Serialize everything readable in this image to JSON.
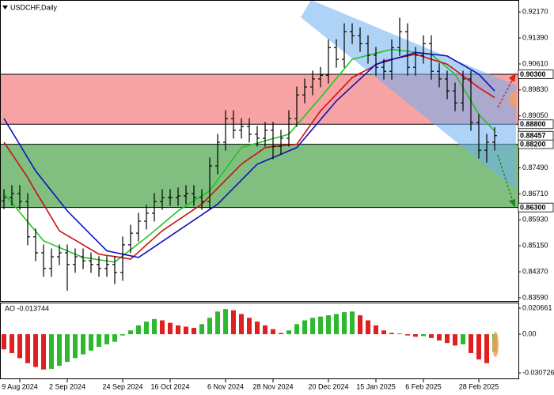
{
  "chart_data": [
    {
      "type": "candlestick",
      "title": "USDCHF,Daily",
      "categories": [
        null,
        null,
        "9 Aug 2024",
        null,
        null,
        null,
        null,
        null,
        "2 Sep 2024",
        null,
        null,
        null,
        null,
        null,
        null,
        "24 Sep 2024",
        null,
        null,
        null,
        null,
        null,
        "16 Oct 2024",
        null,
        null,
        null,
        null,
        null,
        null,
        "6 Nov 2024",
        null,
        null,
        null,
        null,
        null,
        "28 Nov 2024",
        null,
        null,
        null,
        null,
        null,
        null,
        "20 Dec 2024",
        null,
        null,
        null,
        null,
        null,
        "15 Jan 2025",
        null,
        null,
        null,
        null,
        null,
        "6 Feb 2025",
        null,
        null,
        null,
        null,
        null,
        null,
        "28 Feb 2025",
        null,
        null
      ],
      "open": [
        0.865,
        0.866,
        0.8672,
        0.8648,
        0.8542,
        0.8494,
        0.8447,
        0.8482,
        0.8494,
        0.8459,
        0.8482,
        0.847,
        0.8459,
        0.8447,
        0.8459,
        0.8435,
        0.8518,
        0.8553,
        0.8589,
        0.8613,
        0.8648,
        0.866,
        0.866,
        0.8665,
        0.8672,
        0.866,
        0.8648,
        0.8755,
        0.8826,
        0.8897,
        0.8862,
        0.8873,
        0.885,
        0.8838,
        0.8862,
        0.8814,
        0.8838,
        0.8897,
        0.8968,
        0.8992,
        0.9016,
        0.9027,
        0.911,
        0.9075,
        0.9158,
        0.9146,
        0.9122,
        0.9087,
        0.9051,
        0.9039,
        0.911,
        0.9158,
        0.9051,
        0.9087,
        0.9122,
        0.9039,
        0.9016,
        0.898,
        0.8944,
        0.9016,
        0.8885,
        0.8802,
        0.8826
      ],
      "high": [
        0.8685,
        0.8697,
        0.8697,
        0.8673,
        0.8567,
        0.8519,
        0.8507,
        0.8519,
        0.8519,
        0.8507,
        0.8507,
        0.8495,
        0.8484,
        0.8484,
        0.8484,
        0.8543,
        0.8578,
        0.8614,
        0.8638,
        0.8673,
        0.8685,
        0.8685,
        0.869,
        0.8697,
        0.8697,
        0.8685,
        0.878,
        0.8851,
        0.8922,
        0.8922,
        0.8898,
        0.8898,
        0.8875,
        0.8887,
        0.8887,
        0.8863,
        0.8922,
        0.8993,
        0.9017,
        0.9041,
        0.9052,
        0.9135,
        0.9135,
        0.9183,
        0.9183,
        0.9171,
        0.9147,
        0.9112,
        0.9076,
        0.9135,
        0.92,
        0.9183,
        0.9112,
        0.9147,
        0.9147,
        0.9064,
        0.9041,
        0.9005,
        0.9041,
        0.9041,
        0.891,
        0.8851,
        0.8871
      ],
      "low": [
        0.8625,
        0.8635,
        0.8623,
        0.8517,
        0.8469,
        0.8422,
        0.8422,
        0.8457,
        0.838,
        0.8434,
        0.8445,
        0.8434,
        0.8422,
        0.8422,
        0.84,
        0.841,
        0.8493,
        0.8528,
        0.8564,
        0.8588,
        0.8623,
        0.8635,
        0.8635,
        0.864,
        0.8635,
        0.8623,
        0.8623,
        0.873,
        0.8801,
        0.8837,
        0.8837,
        0.8825,
        0.8813,
        0.8813,
        0.8775,
        0.8789,
        0.8813,
        0.8872,
        0.8943,
        0.8967,
        0.8991,
        0.9002,
        0.905,
        0.905,
        0.9121,
        0.9097,
        0.9062,
        0.9026,
        0.9014,
        0.9014,
        0.9085,
        0.9026,
        0.9026,
        0.9062,
        0.9014,
        0.8991,
        0.8955,
        0.8919,
        0.8919,
        0.886,
        0.8777,
        0.8765,
        0.8801
      ],
      "close": [
        0.866,
        0.8672,
        0.8648,
        0.8542,
        0.8494,
        0.8447,
        0.8482,
        0.8494,
        0.8459,
        0.8482,
        0.847,
        0.8459,
        0.8447,
        0.8459,
        0.8435,
        0.8518,
        0.8553,
        0.8589,
        0.8613,
        0.8648,
        0.866,
        0.866,
        0.8665,
        0.8672,
        0.866,
        0.8648,
        0.8755,
        0.8826,
        0.8897,
        0.8862,
        0.8873,
        0.885,
        0.8838,
        0.8862,
        0.8814,
        0.8838,
        0.8897,
        0.8968,
        0.8992,
        0.9016,
        0.9027,
        0.911,
        0.9075,
        0.9158,
        0.9146,
        0.9122,
        0.9087,
        0.9051,
        0.9039,
        0.911,
        0.9158,
        0.9051,
        0.9087,
        0.9122,
        0.9039,
        0.9016,
        0.898,
        0.8944,
        0.9016,
        0.8885,
        0.8802,
        0.8826,
        0.88457
      ],
      "bar_color": "#000000",
      "series": [
        {
          "color": "#22c422",
          "values": [
            0.8672,
            0.8644,
            0.8616,
            0.8587,
            0.8559,
            0.853,
            0.852,
            0.851,
            0.85,
            0.849,
            0.848,
            0.8477,
            0.8473,
            0.847,
            0.8466,
            0.8485,
            0.8503,
            0.8522,
            0.854,
            0.856,
            0.858,
            0.86,
            0.862,
            0.8635,
            0.865,
            0.8665,
            0.868,
            0.8713,
            0.8745,
            0.8778,
            0.881,
            0.8817,
            0.8823,
            0.883,
            0.8837,
            0.8843,
            0.885,
            0.8878,
            0.8905,
            0.8933,
            0.896,
            0.8989,
            0.9018,
            0.9046,
            0.9075,
            0.9081,
            0.9087,
            0.9093,
            0.9099,
            0.9105,
            0.9102,
            0.9099,
            0.9096,
            0.9093,
            0.909,
            0.907,
            0.905,
            0.903,
            0.899,
            0.895,
            0.891,
            0.8885,
            0.886
          ]
        },
        {
          "color": "#cc1111",
          "values": [
            0.8826,
            0.8791,
            0.8755,
            0.872,
            0.8678,
            0.864,
            0.86,
            0.856,
            0.8546,
            0.8532,
            0.8518,
            0.8504,
            0.849,
            0.8486,
            0.8483,
            0.8479,
            0.8475,
            0.8496,
            0.8518,
            0.8539,
            0.856,
            0.8576,
            0.8592,
            0.8608,
            0.8624,
            0.864,
            0.8664,
            0.8688,
            0.8712,
            0.8736,
            0.876,
            0.8777,
            0.8793,
            0.881,
            0.8813,
            0.8815,
            0.8818,
            0.882,
            0.8853,
            0.8887,
            0.892,
            0.8945,
            0.897,
            0.8995,
            0.902,
            0.9033,
            0.9045,
            0.9058,
            0.907,
            0.9075,
            0.908,
            0.9085,
            0.909,
            0.9083,
            0.9075,
            0.9068,
            0.906,
            0.9043,
            0.9025,
            0.9008,
            0.899,
            0.8975,
            0.896
          ]
        },
        {
          "color": "#1111bb",
          "values": [
            0.8897,
            0.8858,
            0.8819,
            0.8779,
            0.874,
            0.871,
            0.868,
            0.865,
            0.862,
            0.8596,
            0.8572,
            0.8548,
            0.8524,
            0.85,
            0.8495,
            0.849,
            0.8485,
            0.848,
            0.8496,
            0.8512,
            0.8528,
            0.8544,
            0.856,
            0.8576,
            0.8592,
            0.8608,
            0.8624,
            0.864,
            0.8664,
            0.8688,
            0.8712,
            0.8736,
            0.876,
            0.877,
            0.878,
            0.879,
            0.88,
            0.881,
            0.8838,
            0.8866,
            0.8894,
            0.8922,
            0.895,
            0.8972,
            0.8994,
            0.9016,
            0.9038,
            0.906,
            0.9067,
            0.9074,
            0.9081,
            0.9088,
            0.9095,
            0.9093,
            0.909,
            0.9088,
            0.9085,
            0.9071,
            0.9058,
            0.9044,
            0.903,
            0.9005,
            0.898
          ]
        }
      ],
      "zones": [
        {
          "from": {
            "value": 0.903,
            "label": "0.90300"
          },
          "to": {
            "value": 0.888,
            "label": "0.88800"
          },
          "color": "#f7a3a3"
        },
        {
          "from": {
            "value": 0.882,
            "label": "0.88200"
          },
          "to": {
            "value": 0.863,
            "label": "0.86300"
          },
          "color": "#80bf80"
        }
      ],
      "ylim": [
        0.8347,
        0.9253
      ],
      "yticks": [
        {
          "value": 0.9217,
          "label": "0.92170"
        },
        {
          "value": 0.9139,
          "label": "0.91390"
        },
        {
          "value": 0.9061,
          "label": "0.90610"
        },
        {
          "value": 0.8983,
          "label": "0.89830"
        },
        {
          "value": 0.8905,
          "label": "0.89050"
        },
        {
          "value": 0.8749,
          "label": "0.87490"
        },
        {
          "value": 0.8671,
          "label": "0.86710"
        },
        {
          "value": 0.8593,
          "label": "0.85930"
        },
        {
          "value": 0.8515,
          "label": "0.85150"
        },
        {
          "value": 0.8437,
          "label": "0.84370"
        },
        {
          "value": 0.8359,
          "label": "0.83590"
        }
      ]
    },
    {
      "type": "bar",
      "title": "AO -0.013744",
      "values": [
        -0.012,
        -0.015,
        -0.019,
        -0.023,
        -0.026,
        -0.028,
        -0.0275,
        -0.025,
        -0.022,
        -0.019,
        -0.016,
        -0.013,
        -0.01,
        -0.008,
        -0.006,
        -0.001,
        0.003,
        0.007,
        0.01,
        0.012,
        0.011,
        0.009,
        0.007,
        0.006,
        0.005,
        0.008,
        0.013,
        0.018,
        0.02,
        0.019,
        0.016,
        0.013,
        0.01,
        0.007,
        0.004,
        0.001,
        0.003,
        0.008,
        0.011,
        0.013,
        0.014,
        0.015,
        0.016,
        0.0175,
        0.018,
        0.015,
        0.011,
        0.007,
        0.003,
        0.001,
        0.0005,
        -0.001,
        -0.002,
        -0.0015,
        -0.003,
        -0.005,
        -0.007,
        -0.009,
        -0.008,
        -0.015,
        -0.02,
        -0.023,
        -0.013744
      ],
      "up_color": "#2eb82e",
      "down_color": "#e02020",
      "ylim": [
        -0.0357,
        0.0251
      ],
      "yticks": [
        0.020661,
        {
          "value": 0,
          "label": "0.00"
        },
        -0.030726
      ]
    }
  ]
}
